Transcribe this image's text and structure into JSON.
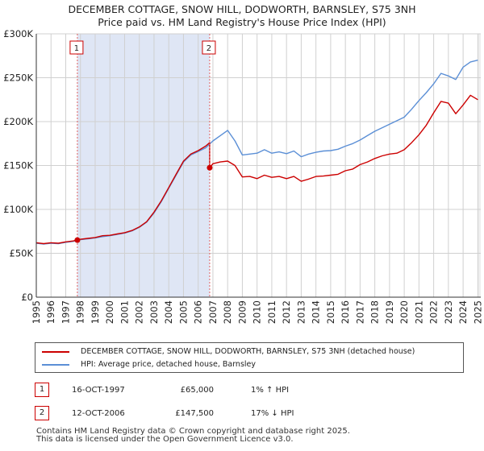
{
  "title_line1": "DECEMBER COTTAGE, SNOW HILL, DODWORTH, BARNSLEY, S75 3NH",
  "title_line2": "Price paid vs. HM Land Registry's House Price Index (HPI)",
  "colors": {
    "property": "#cc0000",
    "hpi": "#5b8fd6",
    "shade": "#dfe6f5",
    "marker_line": "#e06060",
    "grid": "#d0d0d0"
  },
  "chart_data": {
    "type": "line",
    "title": "Price paid vs. HM Land Registry's House Price Index (HPI)",
    "xlim": [
      1995,
      2025.2
    ],
    "ylim": [
      0,
      300000
    ],
    "y_ticks": [
      {
        "value": 0,
        "label": "£0"
      },
      {
        "value": 50000,
        "label": "£50K"
      },
      {
        "value": 100000,
        "label": "£100K"
      },
      {
        "value": 150000,
        "label": "£150K"
      },
      {
        "value": 200000,
        "label": "£200K"
      },
      {
        "value": 250000,
        "label": "£250K"
      },
      {
        "value": 300000,
        "label": "£300K"
      }
    ],
    "x_ticks": [
      "1995",
      "1996",
      "1997",
      "1998",
      "1999",
      "2000",
      "2001",
      "2002",
      "2003",
      "2004",
      "2005",
      "2006",
      "2007",
      "2008",
      "2009",
      "2010",
      "2011",
      "2012",
      "2013",
      "2014",
      "2015",
      "2016",
      "2017",
      "2018",
      "2019",
      "2020",
      "2021",
      "2022",
      "2023",
      "2024",
      "2025"
    ],
    "grid": true,
    "series": [
      {
        "name": "DECEMBER COTTAGE, SNOW HILL, DODWORTH, BARNSLEY, S75 3NH (detached house)",
        "x": [
          1995.0,
          1995.5,
          1996.0,
          1996.5,
          1997.0,
          1997.5,
          1997.79,
          1998.0,
          1998.5,
          1999.0,
          1999.5,
          2000.0,
          2000.5,
          2001.0,
          2001.5,
          2002.0,
          2002.5,
          2003.0,
          2003.5,
          2004.0,
          2004.5,
          2005.0,
          2005.5,
          2006.0,
          2006.5,
          2006.78,
          2006.78,
          2007.0,
          2007.5,
          2008.0,
          2008.5,
          2009.0,
          2009.5,
          2010.0,
          2010.5,
          2011.0,
          2011.5,
          2012.0,
          2012.5,
          2013.0,
          2013.5,
          2014.0,
          2014.5,
          2015.0,
          2015.5,
          2016.0,
          2016.5,
          2017.0,
          2017.5,
          2018.0,
          2018.5,
          2019.0,
          2019.5,
          2020.0,
          2020.5,
          2021.0,
          2021.5,
          2022.0,
          2022.5,
          2023.0,
          2023.5,
          2024.0,
          2024.5,
          2025.0
        ],
        "y": [
          62000,
          61000,
          62000,
          61500,
          63000,
          64000,
          65000,
          66000,
          67000,
          68000,
          70000,
          70500,
          72000,
          73500,
          76000,
          80000,
          86000,
          97000,
          110000,
          125000,
          140000,
          155000,
          163000,
          167000,
          172000,
          176000,
          147500,
          152000,
          154000,
          155000,
          150000,
          137000,
          137500,
          135000,
          139000,
          136500,
          137500,
          135000,
          137500,
          132000,
          134500,
          137500,
          138000,
          139000,
          140000,
          144000,
          146000,
          151000,
          154000,
          158000,
          161000,
          163000,
          164000,
          168000,
          176000,
          185000,
          196000,
          210000,
          223000,
          221000,
          209000,
          219000,
          230000,
          225000
        ],
        "color": "#cc0000"
      },
      {
        "name": "HPI: Average price, detached house, Barnsley",
        "x": [
          1995.0,
          1995.5,
          1996.0,
          1996.5,
          1997.0,
          1997.5,
          1998.0,
          1998.5,
          1999.0,
          1999.5,
          2000.0,
          2000.5,
          2001.0,
          2001.5,
          2002.0,
          2002.5,
          2003.0,
          2003.5,
          2004.0,
          2004.5,
          2005.0,
          2005.5,
          2006.0,
          2006.5,
          2007.0,
          2007.5,
          2008.0,
          2008.5,
          2009.0,
          2009.5,
          2010.0,
          2010.5,
          2011.0,
          2011.5,
          2012.0,
          2012.5,
          2013.0,
          2013.5,
          2014.0,
          2014.5,
          2015.0,
          2015.5,
          2016.0,
          2016.5,
          2017.0,
          2017.5,
          2018.0,
          2018.5,
          2019.0,
          2019.5,
          2020.0,
          2020.5,
          2021.0,
          2021.5,
          2022.0,
          2022.5,
          2023.0,
          2023.5,
          2024.0,
          2024.5,
          2025.0
        ],
        "y": [
          61500,
          60500,
          61500,
          61000,
          62500,
          63500,
          65500,
          66500,
          67500,
          69000,
          70000,
          71500,
          73000,
          75500,
          79500,
          85500,
          96000,
          109000,
          124000,
          139000,
          154000,
          162000,
          166000,
          170000,
          178000,
          184000,
          190000,
          178000,
          162000,
          163000,
          164000,
          168000,
          164000,
          165500,
          163500,
          166500,
          160000,
          163000,
          165000,
          166500,
          167000,
          168500,
          172000,
          175000,
          179000,
          184000,
          189000,
          193000,
          197000,
          201000,
          205000,
          214000,
          224000,
          233000,
          243000,
          255000,
          252000,
          248000,
          262000,
          268000,
          270000
        ],
        "color": "#5b8fd6"
      }
    ],
    "sales": [
      {
        "marker": "1",
        "x": 1997.79,
        "date": "16-OCT-1997",
        "price": "£65,000",
        "price_value": 65000,
        "hpi_delta": "1% ↑ HPI"
      },
      {
        "marker": "2",
        "x": 2006.78,
        "date": "12-OCT-2006",
        "price": "£147,500",
        "price_value": 147500,
        "hpi_delta": "17% ↓ HPI"
      }
    ],
    "shaded_range": [
      1997.79,
      2006.78
    ]
  },
  "footer_line1": "Contains HM Land Registry data © Crown copyright and database right 2025.",
  "footer_line2": "This data is licensed under the Open Government Licence v3.0."
}
